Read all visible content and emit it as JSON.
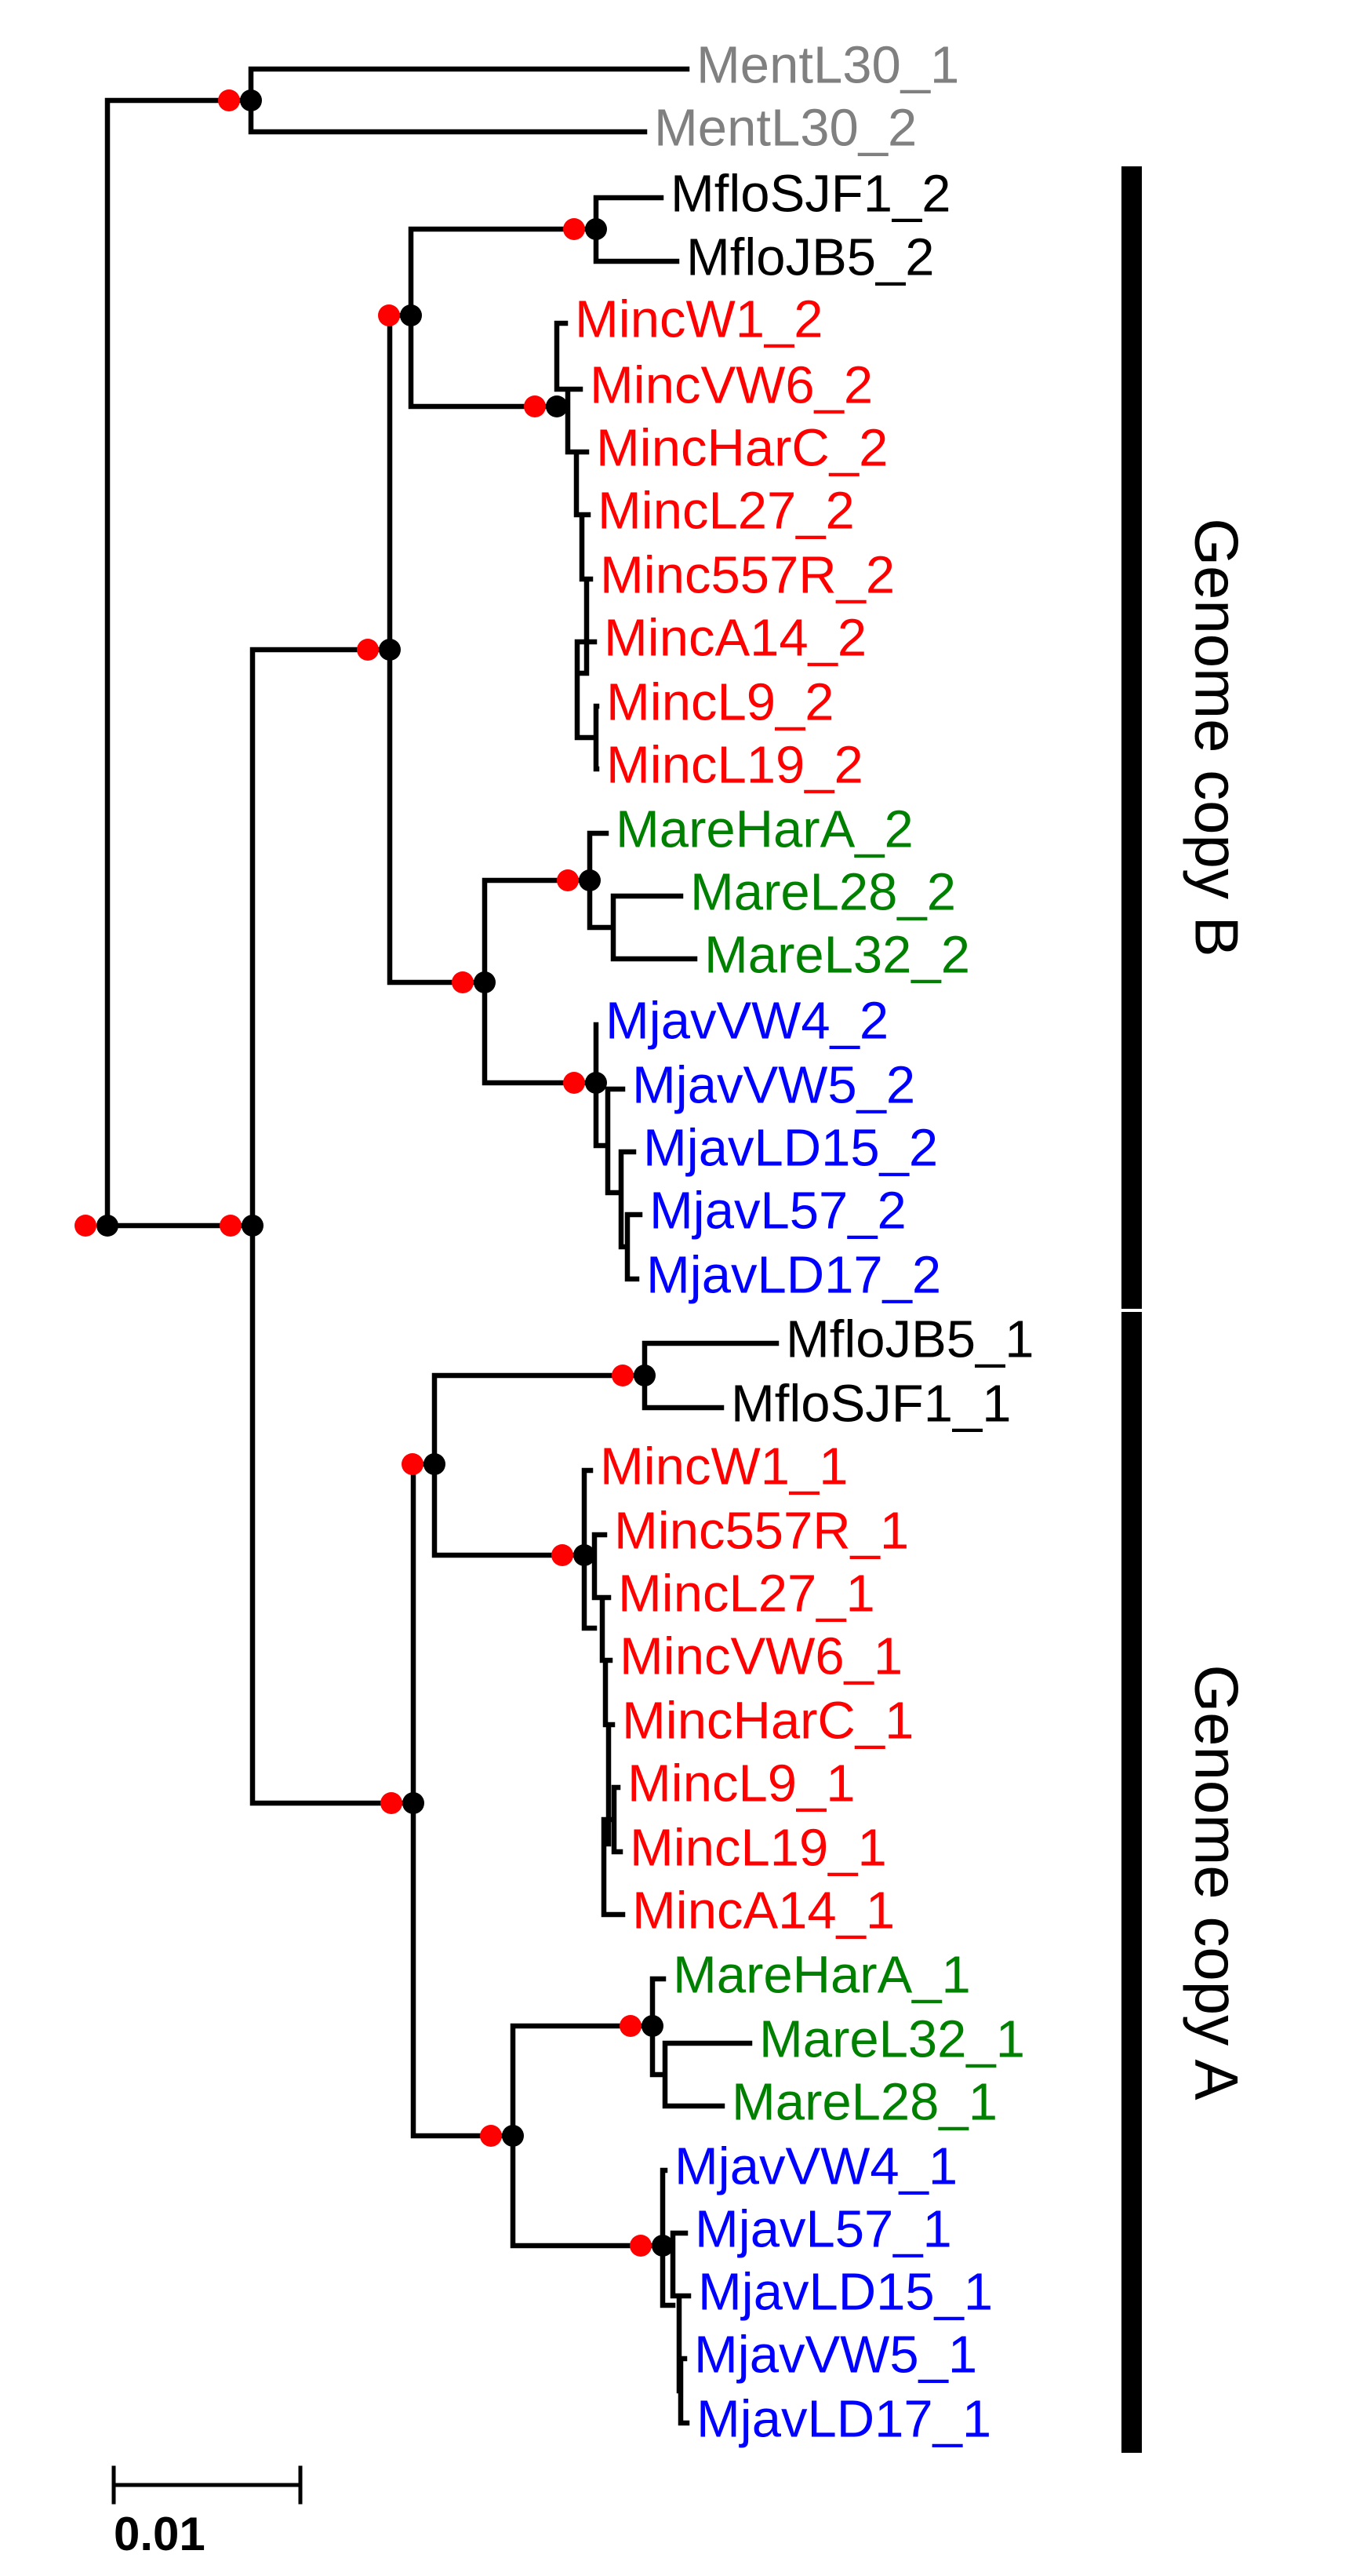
{
  "colors": {
    "outgroup": "#808080",
    "mflo": "#000000",
    "minc": "#ff0000",
    "mare": "#008000",
    "mjav": "#0000ff",
    "support_red": "#ff0000",
    "support_black": "#000000"
  },
  "leaves": [
    {
      "id": "MentL30_1",
      "label": "MentL30_1",
      "color": "outgroup"
    },
    {
      "id": "MentL30_2",
      "label": "MentL30_2",
      "color": "outgroup"
    },
    {
      "id": "MfloSJF1_2",
      "label": "MfloSJF1_2",
      "color": "mflo"
    },
    {
      "id": "MfloJB5_2",
      "label": "MfloJB5_2",
      "color": "mflo"
    },
    {
      "id": "MincW1_2",
      "label": "MincW1_2",
      "color": "minc"
    },
    {
      "id": "MincVW6_2",
      "label": "MincVW6_2",
      "color": "minc"
    },
    {
      "id": "MincHarC_2",
      "label": "MincHarC_2",
      "color": "minc"
    },
    {
      "id": "MincL27_2",
      "label": "MincL27_2",
      "color": "minc"
    },
    {
      "id": "Minc557R_2",
      "label": "Minc557R_2",
      "color": "minc"
    },
    {
      "id": "MincA14_2",
      "label": "MincA14_2",
      "color": "minc"
    },
    {
      "id": "MincL9_2",
      "label": "MincL9_2",
      "color": "minc"
    },
    {
      "id": "MincL19_2",
      "label": "MincL19_2",
      "color": "minc"
    },
    {
      "id": "MareHarA_2",
      "label": "MareHarA_2",
      "color": "mare"
    },
    {
      "id": "MareL28_2",
      "label": "MareL28_2",
      "color": "mare"
    },
    {
      "id": "MareL32_2",
      "label": "MareL32_2",
      "color": "mare"
    },
    {
      "id": "MjavVW4_2",
      "label": "MjavVW4_2",
      "color": "mjav"
    },
    {
      "id": "MjavVW5_2",
      "label": "MjavVW5_2",
      "color": "mjav"
    },
    {
      "id": "MjavLD15_2",
      "label": "MjavLD15_2",
      "color": "mjav"
    },
    {
      "id": "MjavL57_2",
      "label": "MjavL57_2",
      "color": "mjav"
    },
    {
      "id": "MjavLD17_2",
      "label": "MjavLD17_2",
      "color": "mjav"
    },
    {
      "id": "MfloJB5_1",
      "label": "MfloJB5_1",
      "color": "mflo"
    },
    {
      "id": "MfloSJF1_1",
      "label": "MfloSJF1_1",
      "color": "mflo"
    },
    {
      "id": "MincW1_1",
      "label": "MincW1_1",
      "color": "minc"
    },
    {
      "id": "Minc557R_1",
      "label": "Minc557R_1",
      "color": "minc"
    },
    {
      "id": "MincL27_1",
      "label": "MincL27_1",
      "color": "minc"
    },
    {
      "id": "MincVW6_1",
      "label": "MincVW6_1",
      "color": "minc"
    },
    {
      "id": "MincHarC_1",
      "label": "MincHarC_1",
      "color": "minc"
    },
    {
      "id": "MincL9_1",
      "label": "MincL9_1",
      "color": "minc"
    },
    {
      "id": "MincL19_1",
      "label": "MincL19_1",
      "color": "minc"
    },
    {
      "id": "MincA14_1",
      "label": "MincA14_1",
      "color": "minc"
    },
    {
      "id": "MareHarA_1",
      "label": "MareHarA_1",
      "color": "mare"
    },
    {
      "id": "MareL32_1",
      "label": "MareL32_1",
      "color": "mare"
    },
    {
      "id": "MareL28_1",
      "label": "MareL28_1",
      "color": "mare"
    },
    {
      "id": "MjavVW4_1",
      "label": "MjavVW4_1",
      "color": "mjav"
    },
    {
      "id": "MjavL57_1",
      "label": "MjavL57_1",
      "color": "mjav"
    },
    {
      "id": "MjavLD15_1",
      "label": "MjavLD15_1",
      "color": "mjav"
    },
    {
      "id": "MjavVW5_1",
      "label": "MjavVW5_1",
      "color": "mjav"
    },
    {
      "id": "MjavLD17_1",
      "label": "MjavLD17_1",
      "color": "mjav"
    }
  ],
  "groups": [
    {
      "id": "copy_b",
      "label": "Genome copy B",
      "first_leaf": "MfloSJF1_2",
      "last_leaf": "MjavLD17_2"
    },
    {
      "id": "copy_a",
      "label": "Genome copy A",
      "first_leaf": "MfloJB5_1",
      "last_leaf": "MjavLD17_1"
    }
  ],
  "supported_nodes": [
    "root",
    "outgroup",
    "ingroup",
    "copyB",
    "mincfloB",
    "mfloB",
    "mincB",
    "marejavB",
    "mareB",
    "mjavB",
    "copyA",
    "mincfloA",
    "mfloA",
    "mincA",
    "marejavA",
    "mareA",
    "mjavA"
  ],
  "scale_bar": {
    "label": "0.01",
    "value": 0.01
  }
}
